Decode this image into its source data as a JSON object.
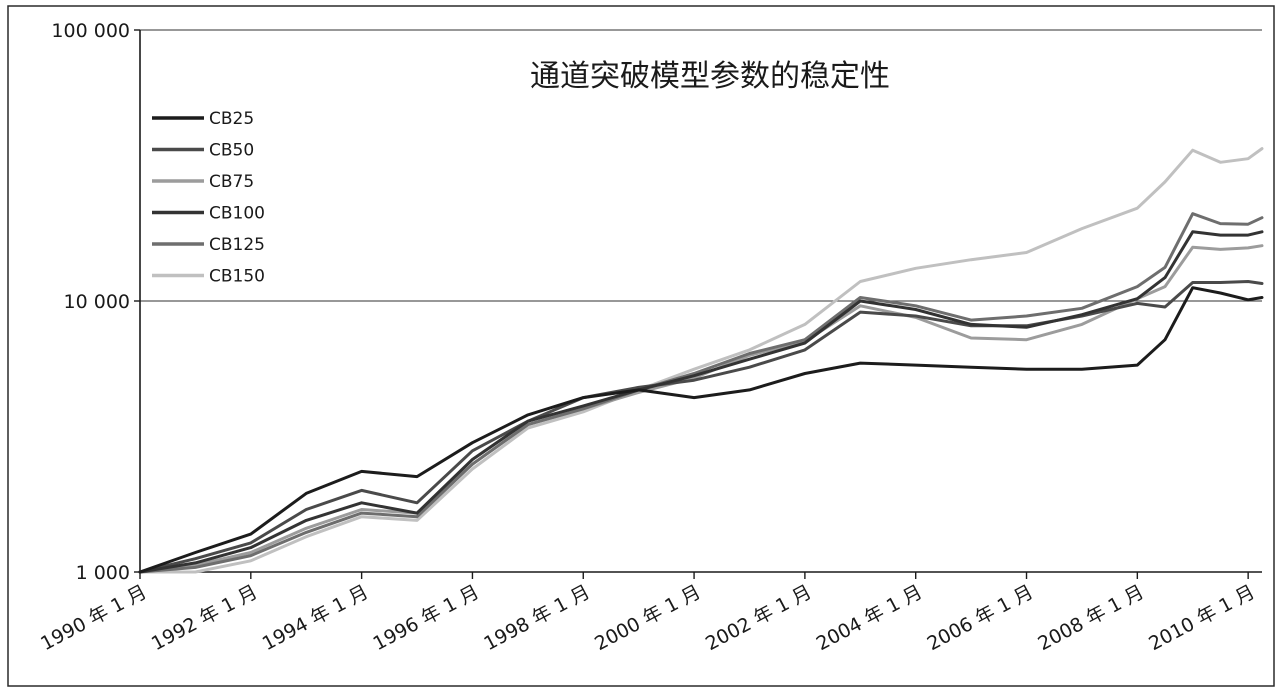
{
  "chart_data": {
    "type": "line",
    "title": "通道突破模型参数的稳定性",
    "xlabel": "",
    "ylabel": "",
    "yscale": "log",
    "ylim": [
      1000,
      100000
    ],
    "grid": true,
    "legend_position": "top-left",
    "y_ticks": [
      {
        "value": 1000,
        "label": "1 000"
      },
      {
        "value": 10000,
        "label": "10 000"
      },
      {
        "value": 100000,
        "label": "100 000"
      }
    ],
    "x_ticks": [
      {
        "value": "1990-01",
        "label": "1990 年 1 月"
      },
      {
        "value": "1992-01",
        "label": "1992 年 1 月"
      },
      {
        "value": "1994-01",
        "label": "1994 年 1 月"
      },
      {
        "value": "1996-01",
        "label": "1996 年 1 月"
      },
      {
        "value": "1998-01",
        "label": "1998 年 1 月"
      },
      {
        "value": "2000-01",
        "label": "2000 年 1 月"
      },
      {
        "value": "2002-01",
        "label": "2002 年 1 月"
      },
      {
        "value": "2004-01",
        "label": "2004 年 1 月"
      },
      {
        "value": "2006-01",
        "label": "2006 年 1 月"
      },
      {
        "value": "2008-01",
        "label": "2008 年 1 月"
      },
      {
        "value": "2010-01",
        "label": "2010 年 1 月"
      }
    ],
    "x_range": [
      "1990-01",
      "2010-04"
    ],
    "x": [
      "1990-01",
      "1991-01",
      "1992-01",
      "1993-01",
      "1994-01",
      "1995-01",
      "1996-01",
      "1997-01",
      "1998-01",
      "1999-01",
      "2000-01",
      "2001-01",
      "2002-01",
      "2003-01",
      "2004-01",
      "2005-01",
      "2006-01",
      "2007-01",
      "2008-01",
      "2008-07",
      "2009-01",
      "2009-07",
      "2010-01",
      "2010-04"
    ],
    "series": [
      {
        "name": "CB25",
        "color": "#1c1c1c",
        "values": [
          1000,
          1180,
          1380,
          1950,
          2350,
          2250,
          3000,
          3800,
          4400,
          4700,
          4400,
          4700,
          5400,
          5900,
          5800,
          5700,
          5600,
          5600,
          5800,
          7200,
          11200,
          10700,
          10100,
          10300
        ]
      },
      {
        "name": "CB50",
        "color": "#4a4a4a",
        "values": [
          1000,
          1120,
          1280,
          1700,
          2000,
          1800,
          2800,
          3600,
          4400,
          4800,
          5100,
          5700,
          6600,
          9100,
          8800,
          8100,
          8100,
          8800,
          9800,
          9500,
          11700,
          11700,
          11800,
          11600
        ]
      },
      {
        "name": "CB75",
        "color": "#9c9c9c",
        "values": [
          1000,
          1060,
          1180,
          1450,
          1700,
          1650,
          2500,
          3500,
          4000,
          4600,
          5200,
          6300,
          7100,
          9600,
          8700,
          7300,
          7200,
          8200,
          10200,
          11300,
          15800,
          15500,
          15700,
          16000
        ]
      },
      {
        "name": "CB100",
        "color": "#333333",
        "values": [
          1000,
          1080,
          1230,
          1550,
          1800,
          1650,
          2600,
          3600,
          4100,
          4700,
          5300,
          6100,
          7000,
          10000,
          9300,
          8200,
          8000,
          8900,
          10200,
          12200,
          18000,
          17500,
          17500,
          18000
        ]
      },
      {
        "name": "CB125",
        "color": "#6e6e6e",
        "values": [
          1000,
          1040,
          1150,
          1400,
          1650,
          1600,
          2500,
          3500,
          4000,
          4700,
          5400,
          6400,
          7200,
          10300,
          9600,
          8500,
          8800,
          9400,
          11300,
          13300,
          21000,
          19300,
          19200,
          20300
        ]
      },
      {
        "name": "CB150",
        "color": "#c0c0c0",
        "values": [
          1000,
          1000,
          1100,
          1350,
          1600,
          1550,
          2400,
          3400,
          3900,
          4700,
          5600,
          6600,
          8200,
          11800,
          13200,
          14200,
          15100,
          18500,
          22000,
          27500,
          36000,
          32500,
          33500,
          36500
        ]
      }
    ]
  }
}
